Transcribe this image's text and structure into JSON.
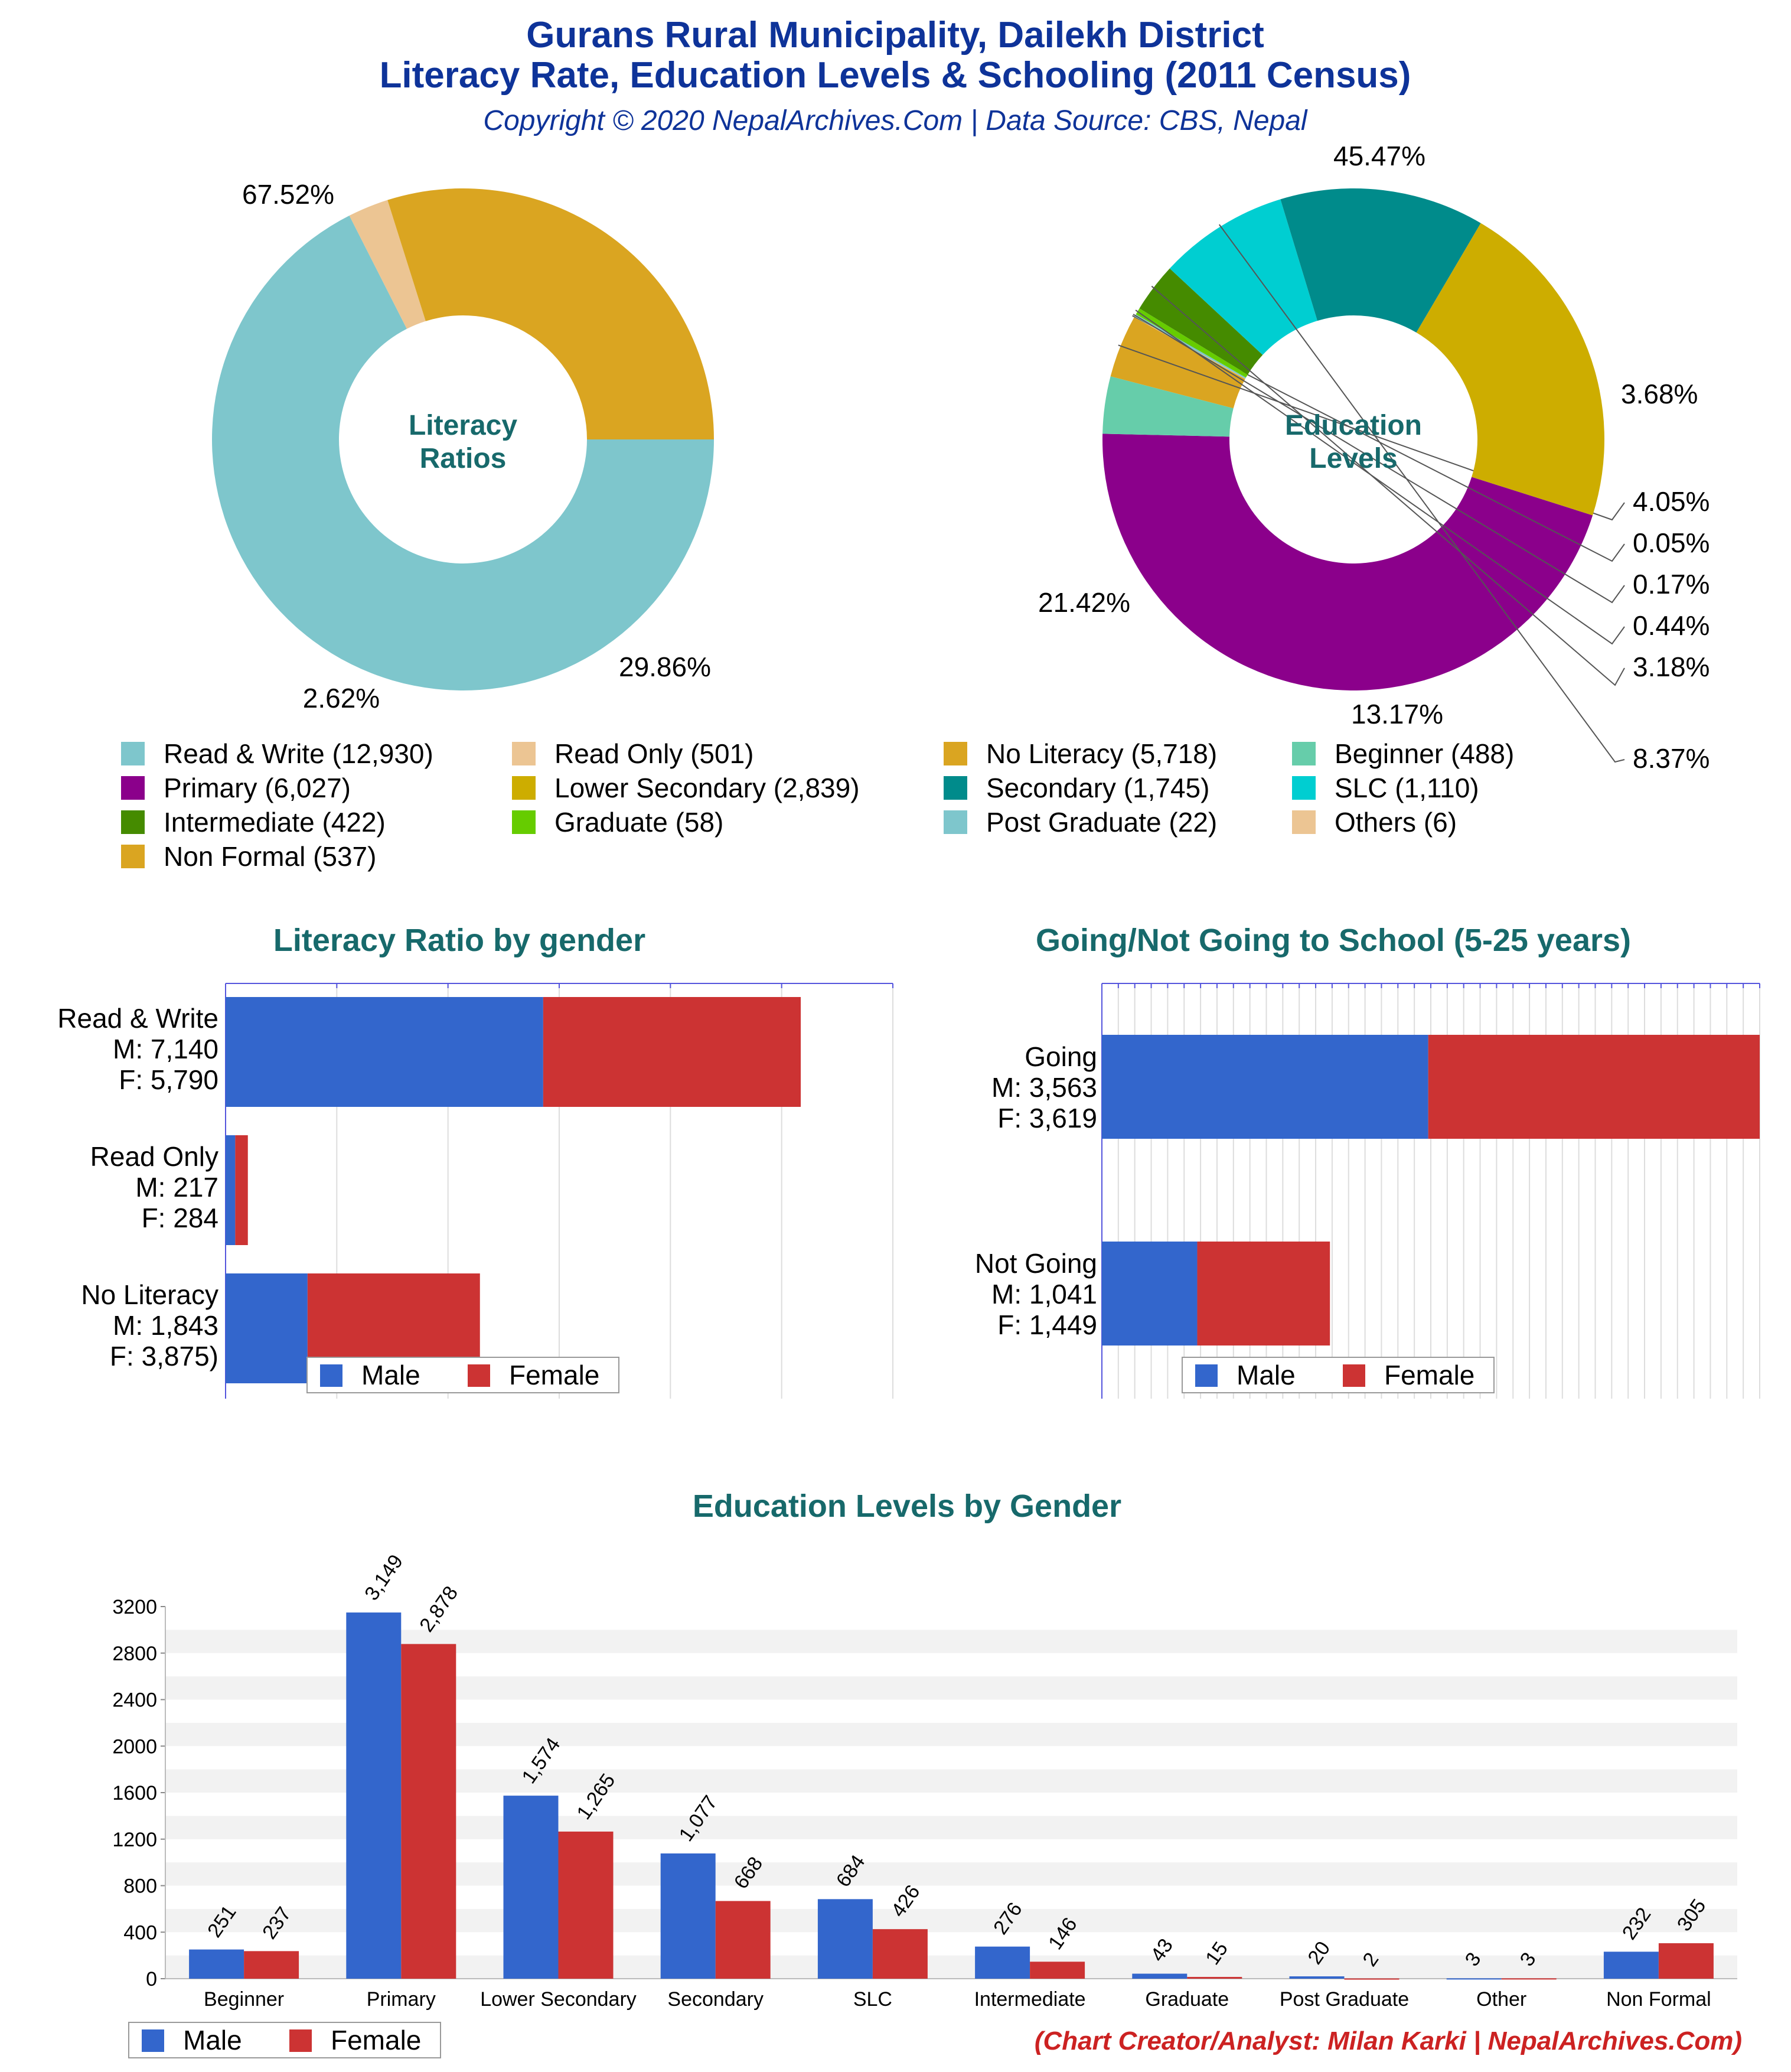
{
  "header": {
    "title_line1": "Gurans Rural Municipality, Dailekh District",
    "title_line2": "Literacy Rate, Education Levels & Schooling (2011 Census)",
    "subtitle": "Copyright © 2020 NepalArchives.Com | Data Source: CBS, Nepal"
  },
  "credit": "(Chart Creator/Analyst: Milan Karki | NepalArchives.Com)",
  "chart_data": [
    {
      "type": "pie",
      "center_label": [
        "Literacy",
        "Ratios"
      ],
      "slices": [
        {
          "label": "Read & Write",
          "value": 12930,
          "percent": "67.52%",
          "color": "#7ec6cc"
        },
        {
          "label": "Read Only",
          "value": 501,
          "percent": "2.62%",
          "color": "#ecc593"
        },
        {
          "label": "No Literacy",
          "value": 5718,
          "percent": "29.86%",
          "color": "#daa521"
        }
      ]
    },
    {
      "type": "pie",
      "center_label": [
        "Education",
        "Levels"
      ],
      "slices": [
        {
          "label": "Primary",
          "value": 6027,
          "percent": "45.47%",
          "color": "#8b008b"
        },
        {
          "label": "Beginner",
          "value": 488,
          "percent": "3.68%",
          "color": "#66cdaa"
        },
        {
          "label": "Non Formal",
          "value": 537,
          "percent": "4.05%",
          "color": "#daa521"
        },
        {
          "label": "Others",
          "value": 6,
          "percent": "0.05%",
          "color": "#ecc593"
        },
        {
          "label": "Post Graduate",
          "value": 22,
          "percent": "0.17%",
          "color": "#7ec6cc"
        },
        {
          "label": "Graduate",
          "value": 58,
          "percent": "0.44%",
          "color": "#66cc00"
        },
        {
          "label": "Intermediate",
          "value": 422,
          "percent": "3.18%",
          "color": "#458b00"
        },
        {
          "label": "SLC",
          "value": 1110,
          "percent": "8.37%",
          "color": "#00ced1"
        },
        {
          "label": "Secondary",
          "value": 1745,
          "percent": "13.17%",
          "color": "#008b8b"
        },
        {
          "label": "Lower Secondary",
          "value": 2839,
          "percent": "21.42%",
          "color": "#cdad00"
        }
      ]
    },
    {
      "type": "bar",
      "orientation": "horizontal",
      "stacked": true,
      "title": "Literacy Ratio by gender",
      "categories": [
        "Read & Write",
        "Read Only",
        "No Literacy"
      ],
      "category_labels": [
        [
          "Read & Write",
          "M: 7,140",
          "F: 5,790"
        ],
        [
          "Read Only",
          "M: 217",
          "F: 284"
        ],
        [
          "No Literacy",
          "M: 1,843",
          "F: 3,875)"
        ]
      ],
      "series": [
        {
          "name": "Male",
          "values": [
            7140,
            217,
            1843
          ],
          "color": "#3366cc"
        },
        {
          "name": "Female",
          "values": [
            5790,
            284,
            3875
          ],
          "color": "#cc3333"
        }
      ],
      "xlim": [
        0,
        15000
      ],
      "legend": "bottom"
    },
    {
      "type": "bar",
      "orientation": "horizontal",
      "stacked": true,
      "title": "Going/Not Going to School (5-25 years)",
      "categories": [
        "Going",
        "Not Going"
      ],
      "category_labels": [
        [
          "Going",
          "M: 3,563",
          "F: 3,619"
        ],
        [
          "Not Going",
          "M: 1,041",
          "F: 1,449"
        ]
      ],
      "series": [
        {
          "name": "Male",
          "values": [
            3563,
            1041
          ],
          "color": "#3366cc"
        },
        {
          "name": "Female",
          "values": [
            3619,
            1449
          ],
          "color": "#cc3333"
        }
      ],
      "xlim": [
        0,
        7182
      ],
      "legend": "bottom"
    },
    {
      "type": "bar",
      "title": "Education Levels by Gender",
      "categories": [
        "Beginner",
        "Primary",
        "Lower Secondary",
        "Secondary",
        "SLC",
        "Intermediate",
        "Graduate",
        "Post Graduate",
        "Other",
        "Non Formal"
      ],
      "series": [
        {
          "name": "Male",
          "values": [
            251,
            3149,
            1574,
            1077,
            684,
            276,
            43,
            20,
            3,
            232
          ],
          "labels": [
            "251",
            "3,149",
            "1,574",
            "1,077",
            "684",
            "276",
            "43",
            "20",
            "3",
            "232"
          ],
          "color": "#3366cc"
        },
        {
          "name": "Female",
          "values": [
            237,
            2878,
            1265,
            668,
            426,
            146,
            15,
            2,
            3,
            305
          ],
          "labels": [
            "237",
            "2,878",
            "1,265",
            "668",
            "426",
            "146",
            "15",
            "2",
            "3",
            "305"
          ],
          "color": "#cc3333"
        }
      ],
      "ylim": [
        0,
        3200
      ],
      "yticks": [
        "0",
        "400",
        "800",
        "1200",
        "1600",
        "2000",
        "2400",
        "2800",
        "3200"
      ],
      "legend": "bottom-left"
    }
  ],
  "legend_items": [
    {
      "text": "Read & Write (12,930)",
      "color": "#7ec6cc"
    },
    {
      "text": "Read Only (501)",
      "color": "#ecc593"
    },
    {
      "text": "No Literacy (5,718)",
      "color": "#daa521"
    },
    {
      "text": "Beginner (488)",
      "color": "#66cdaa"
    },
    {
      "text": "Primary (6,027)",
      "color": "#8b008b"
    },
    {
      "text": "Lower Secondary (2,839)",
      "color": "#cdad00"
    },
    {
      "text": "Secondary (1,745)",
      "color": "#008b8b"
    },
    {
      "text": "SLC (1,110)",
      "color": "#00ced1"
    },
    {
      "text": "Intermediate (422)",
      "color": "#458b00"
    },
    {
      "text": "Graduate (58)",
      "color": "#66cc00"
    },
    {
      "text": "Post Graduate (22)",
      "color": "#7ec6cc"
    },
    {
      "text": "Others (6)",
      "color": "#ecc593"
    },
    {
      "text": "Non Formal (537)",
      "color": "#daa521"
    }
  ]
}
